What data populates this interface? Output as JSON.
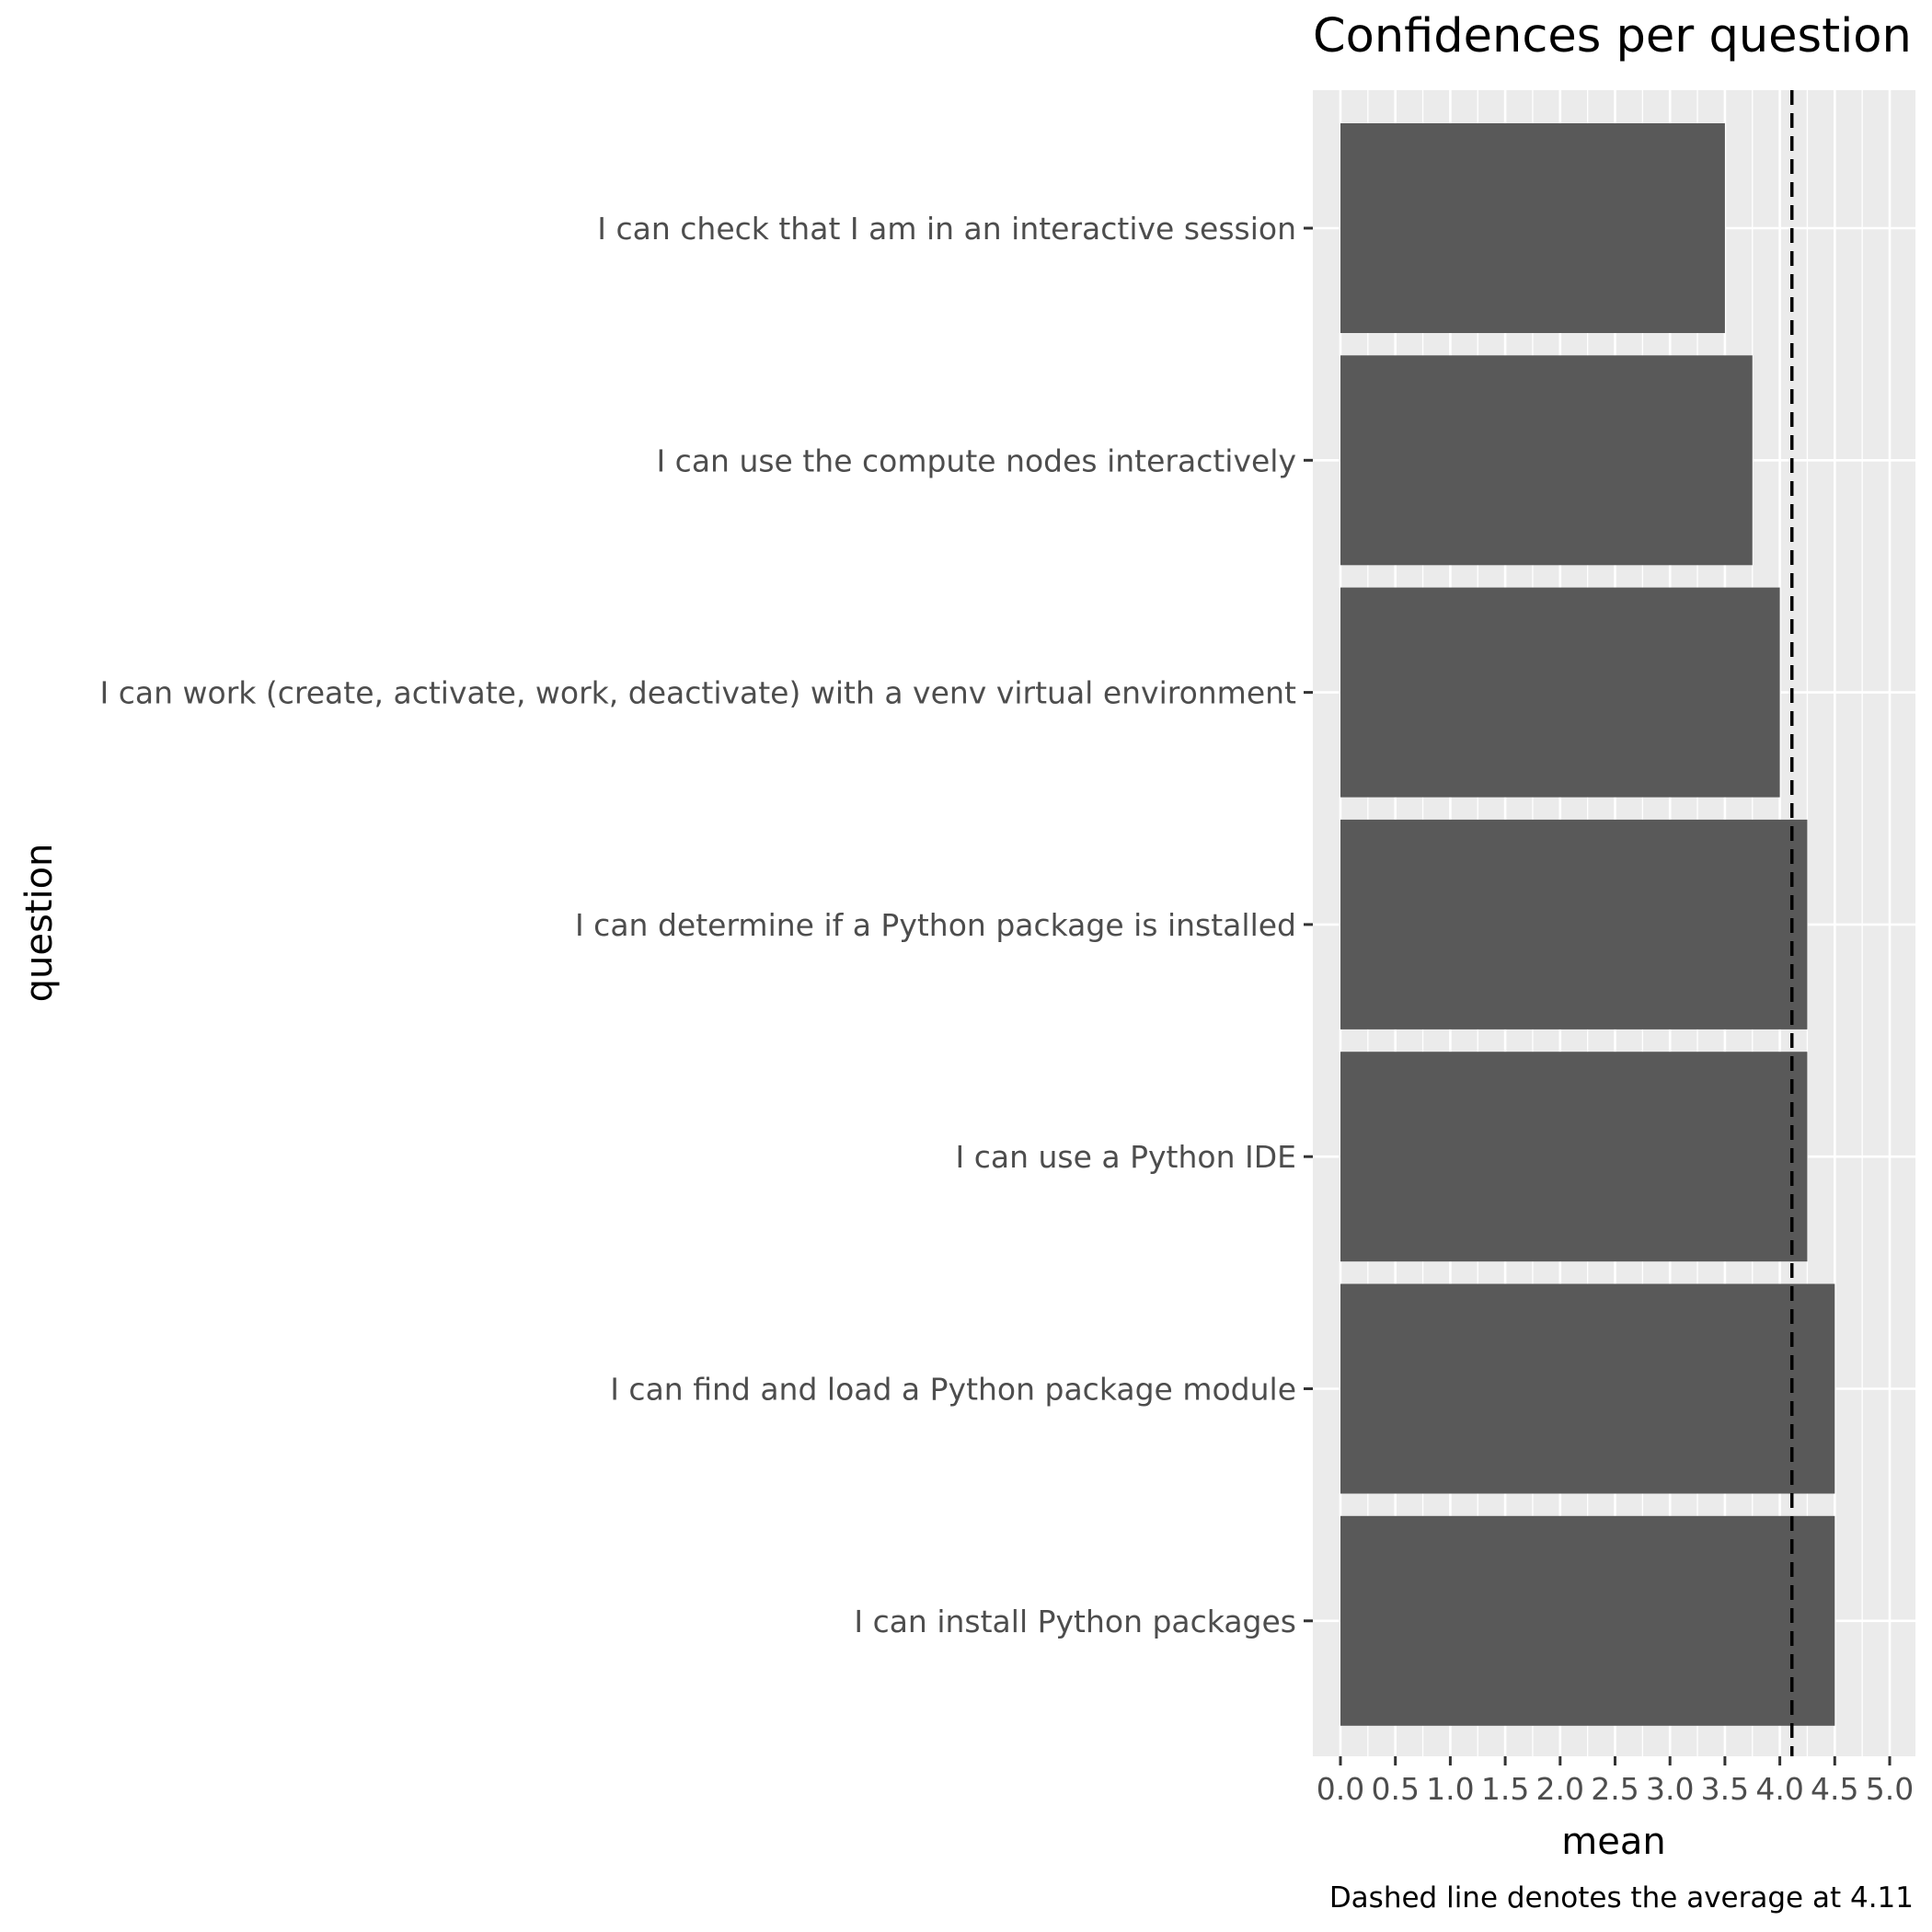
{
  "chart_data": {
    "type": "bar",
    "orientation": "horizontal",
    "title": "Confidences per question",
    "xlabel": "mean",
    "ylabel": "question",
    "caption": "Dashed line denotes the average at 4.11",
    "categories": [
      "I can check that I am in an interactive session",
      "I can use the compute nodes interactively",
      "I can work (create, activate, work, deactivate) with a venv virtual environment",
      "I can determine if a Python package is installed",
      "I can use a Python IDE",
      "I can find and load a Python package module",
      "I can install Python packages"
    ],
    "values": [
      3.5,
      3.75,
      4.0,
      4.25,
      4.25,
      4.5,
      4.5
    ],
    "xlim": [
      0,
      5
    ],
    "xticks": [
      "0.0",
      "0.5",
      "1.0",
      "1.5",
      "2.0",
      "2.5",
      "3.0",
      "3.5",
      "4.0",
      "4.5",
      "5.0"
    ],
    "reference_line": {
      "value": 4.11,
      "style": "dashed"
    },
    "grid": true,
    "colors": {
      "bar": "#595959",
      "panel": "#ebebeb",
      "grid": "#ffffff",
      "text": "#4d4d4d",
      "reference": "#000000"
    }
  }
}
